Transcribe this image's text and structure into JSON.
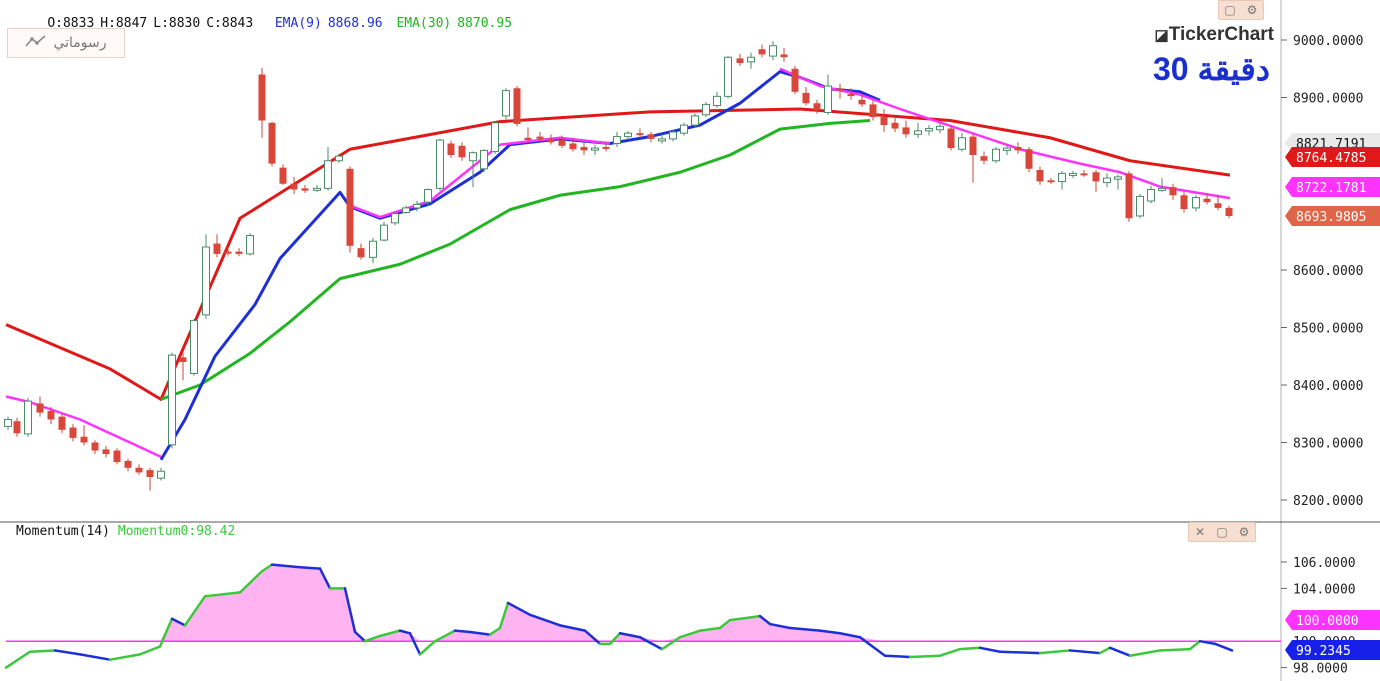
{
  "ohlc": {
    "o": "O:8833",
    "h": "H:8847",
    "l": "L:8830",
    "c": "C:8843"
  },
  "ema9": {
    "label": "EMA(9)",
    "value": "8868.96",
    "color": "#1f2fd8"
  },
  "ema30": {
    "label": "EMA(30)",
    "value": "8870.95",
    "color": "#22b522"
  },
  "toolbar": {
    "drawings_label": "رسوماتي",
    "drawings_icon": "trend-line-icon"
  },
  "brand": {
    "logo": "TickerChart",
    "period": "30 دقيقة"
  },
  "price_axis": {
    "ticks": [
      "9000.0000",
      "8900.0000",
      "8600.0000",
      "8500.0000",
      "8400.0000",
      "8300.0000",
      "8200.0000"
    ]
  },
  "price_badges": [
    {
      "text": "8821.7191",
      "bg": "#e9e9e9",
      "fg": "#111111"
    },
    {
      "text": "8764.4785",
      "bg": "#e01818",
      "fg": "#ffffff"
    },
    {
      "text": "8722.1781",
      "bg": "#ff33ff",
      "fg": "#ffffff"
    },
    {
      "text": "8693.9805",
      "bg": "#e06448",
      "fg": "#ffffff"
    }
  ],
  "momentum": {
    "title": "Momentum(14)",
    "value_label": "Momentum0:98.42",
    "axis_ticks": [
      "106.0000",
      "104.0000",
      "98.0000"
    ],
    "axis_partial": [
      "102.0000",
      "100.0000"
    ],
    "badges": [
      {
        "text": "100.0000",
        "bg": "#ff33ff",
        "fg": "#ffffff"
      },
      {
        "text": "99.2345",
        "bg": "#1620e8",
        "fg": "#ffffff"
      }
    ]
  },
  "icons": {
    "window_restore": "window-icon",
    "settings": "gear-icon",
    "close": "close-icon"
  },
  "colors": {
    "bull": "#2e8b57",
    "bear": "#d9473a",
    "ema_fast": "#1f2fd8",
    "ema_slow": "#22b522",
    "ema_red": "#e01818",
    "ema_magenta": "#ff33ff",
    "momentum_fill": "#ffb3f0"
  }
}
